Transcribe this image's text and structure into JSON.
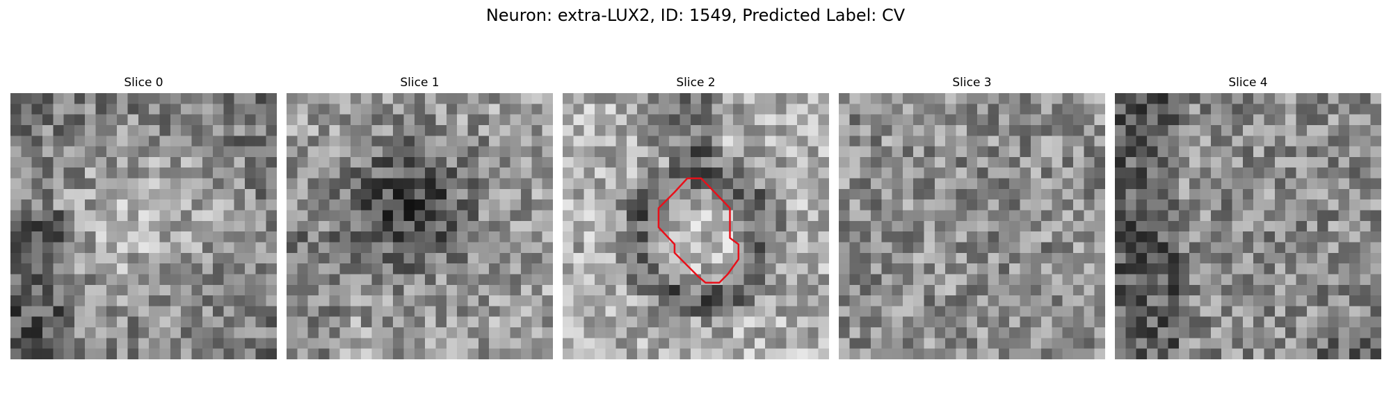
{
  "figure": {
    "title": "Neuron: extra-LUX2, ID: 1549, Predicted Label: CV"
  },
  "panels": [
    {
      "title": "Slice 0",
      "seed": 11,
      "pattern": "bright-center",
      "has_contour": false
    },
    {
      "title": "Slice 1",
      "seed": 23,
      "pattern": "dark-center",
      "has_contour": false
    },
    {
      "title": "Slice 2",
      "seed": 37,
      "pattern": "ring",
      "has_contour": true
    },
    {
      "title": "Slice 3",
      "seed": 51,
      "pattern": "noise",
      "has_contour": false
    },
    {
      "title": "Slice 4",
      "seed": 67,
      "pattern": "noise-dark-left",
      "has_contour": false
    }
  ],
  "colors": {
    "contour": "#e8101a",
    "colormap": "gray"
  }
}
